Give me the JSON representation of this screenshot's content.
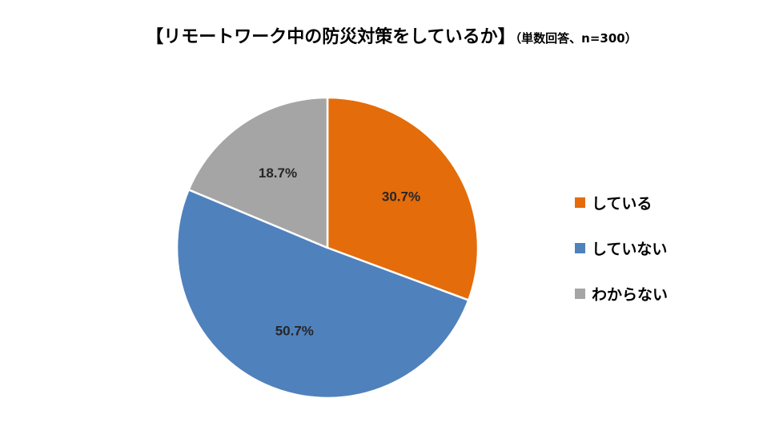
{
  "chart_data": {
    "type": "pie",
    "title": "【リモートワーク中の防災対策をしているか】",
    "subtitle": "（単数回答、n=300）",
    "categories": [
      "している",
      "していない",
      "わからない"
    ],
    "values": [
      30.7,
      50.7,
      18.7
    ],
    "labels": [
      "30.7%",
      "50.7%",
      "18.7%"
    ],
    "colors": [
      "#E46C0A",
      "#4F81BD",
      "#A5A5A5"
    ],
    "legend_position": "right"
  }
}
